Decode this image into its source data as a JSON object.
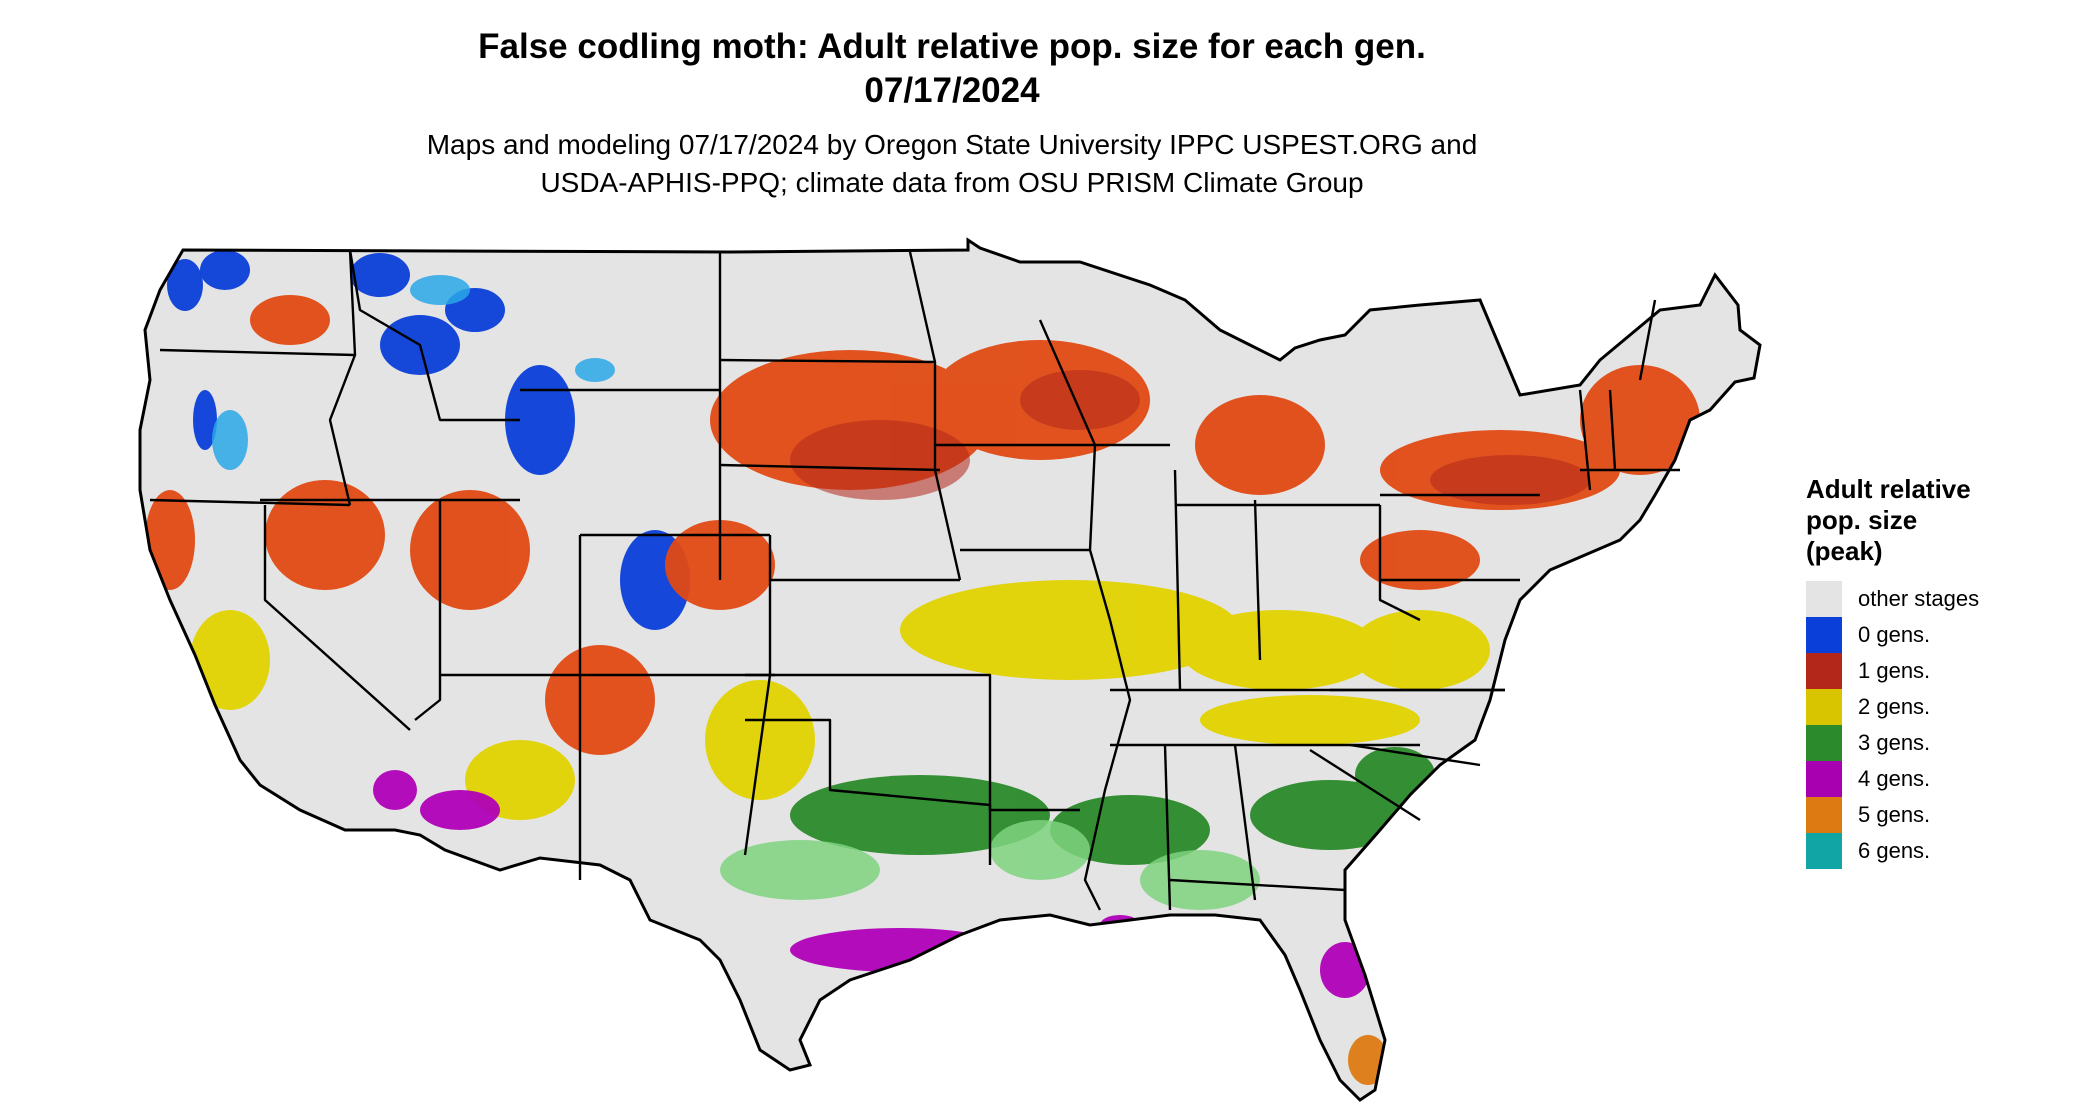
{
  "title": {
    "line1": "False codling moth: Adult relative pop. size for each gen.",
    "line2": "07/17/2024"
  },
  "subtitle": {
    "line1": "Maps and modeling 07/17/2024 by Oregon State University IPPC USPEST.ORG and",
    "line2": "USDA-APHIS-PPQ; climate data from OSU PRISM Climate Group"
  },
  "legend": {
    "title_lines": [
      "Adult relative",
      "pop. size",
      "(peak)"
    ],
    "items": [
      {
        "label": "other stages",
        "color": "#e4e4e4"
      },
      {
        "label": "0 gens.",
        "color": "#0a3fd9"
      },
      {
        "label": "1 gens.",
        "color": "#b3261a"
      },
      {
        "label": "2 gens.",
        "color": "#d9c400"
      },
      {
        "label": "3 gens.",
        "color": "#2b8a2b"
      },
      {
        "label": "4 gens.",
        "color": "#a800b0"
      },
      {
        "label": "5 gens.",
        "color": "#dd7a12"
      },
      {
        "label": "6 gens.",
        "color": "#11a5a5"
      }
    ]
  },
  "map": {
    "region": "Contiguous United States",
    "base_color": "#e4e4e4",
    "border_color": "#000000"
  }
}
